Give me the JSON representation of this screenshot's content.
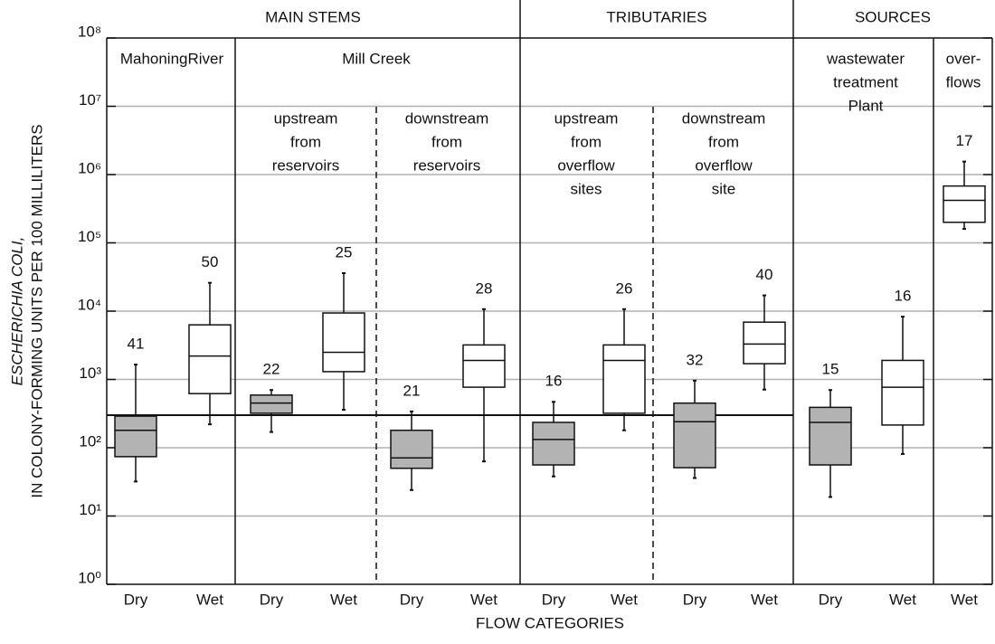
{
  "chart_data": {
    "type": "box",
    "log_scale": true,
    "ylabel": [
      "ESCHERICHIA COLI,",
      "IN COLONY-FORMING UNITS PER 100 MILLILITERS"
    ],
    "xlabel": "FLOW CATEGORIES",
    "groups": [
      "MAIN STEMS",
      "TRIBUTARIES",
      "SOURCES"
    ],
    "subgroups": [
      [
        "MahoningRiver"
      ],
      [
        "Mill Creek"
      ],
      [
        "upstream",
        "from",
        "reservoirs"
      ],
      [
        "downstream",
        "from",
        "reservoirs"
      ],
      [
        "upstream",
        "from",
        "overflow",
        "sites"
      ],
      [
        "downstream",
        "from",
        "overflow",
        "site"
      ],
      [
        "wastewater",
        "treatment",
        "Plant"
      ],
      [
        "over-",
        "flows"
      ]
    ],
    "ylim": [
      1,
      100000000
    ],
    "yticks": [
      {
        "value": 1,
        "label": "10⁰"
      },
      {
        "value": 10,
        "label": "10¹"
      },
      {
        "value": 100,
        "label": "10²"
      },
      {
        "value": 1000,
        "label": "10³"
      },
      {
        "value": 10000,
        "label": "10⁴"
      },
      {
        "value": 100000,
        "label": "10⁵"
      },
      {
        "value": 1000000,
        "label": "10⁶"
      },
      {
        "value": 10000000,
        "label": "10⁷"
      },
      {
        "value": 100000000,
        "label": "10⁸"
      }
    ],
    "grid": true,
    "reference_line": 300,
    "boxes": [
      {
        "category": "Dry",
        "color": "#b3b3b3",
        "min": 32,
        "q1": 74,
        "median": 180,
        "q3": 290,
        "max": 1650,
        "n": 41
      },
      {
        "category": "Wet",
        "color": "#ffffff",
        "min": 220,
        "q1": 620,
        "median": 2200,
        "q3": 6300,
        "max": 26000,
        "n": 50
      },
      {
        "category": "Dry",
        "color": "#b3b3b3",
        "min": 170,
        "q1": 320,
        "median": 450,
        "q3": 590,
        "max": 700,
        "n": 22
      },
      {
        "category": "Wet",
        "color": "#ffffff",
        "min": 360,
        "q1": 1300,
        "median": 2500,
        "q3": 9400,
        "max": 36000,
        "n": 25
      },
      {
        "category": "Dry",
        "color": "#b3b3b3",
        "min": 24,
        "q1": 50,
        "median": 71,
        "q3": 180,
        "max": 340,
        "n": 21
      },
      {
        "category": "Wet",
        "color": "#ffffff",
        "min": 63,
        "q1": 770,
        "median": 1900,
        "q3": 3200,
        "max": 10700,
        "n": 28
      },
      {
        "category": "Dry",
        "color": "#b3b3b3",
        "min": 38,
        "q1": 56,
        "median": 132,
        "q3": 235,
        "max": 470,
        "n": 16
      },
      {
        "category": "Wet",
        "color": "#ffffff",
        "min": 180,
        "q1": 320,
        "median": 1900,
        "q3": 3200,
        "max": 10700,
        "n": 26
      },
      {
        "category": "Dry",
        "color": "#b3b3b3",
        "min": 36,
        "q1": 51,
        "median": 240,
        "q3": 450,
        "max": 960,
        "n": 32
      },
      {
        "category": "Wet",
        "color": "#ffffff",
        "min": 710,
        "q1": 1700,
        "median": 3300,
        "q3": 6900,
        "max": 17000,
        "n": 40
      },
      {
        "category": "Dry",
        "color": "#b3b3b3",
        "min": 19,
        "q1": 56,
        "median": 235,
        "q3": 390,
        "max": 700,
        "n": 15
      },
      {
        "category": "Wet",
        "color": "#ffffff",
        "min": 81,
        "q1": 215,
        "median": 770,
        "q3": 1900,
        "max": 8300,
        "n": 16
      },
      {
        "category": "Wet",
        "color": "#ffffff",
        "min": 160000,
        "q1": 200000,
        "median": 420000,
        "q3": 680000,
        "max": 1550000,
        "n": 17
      }
    ]
  }
}
